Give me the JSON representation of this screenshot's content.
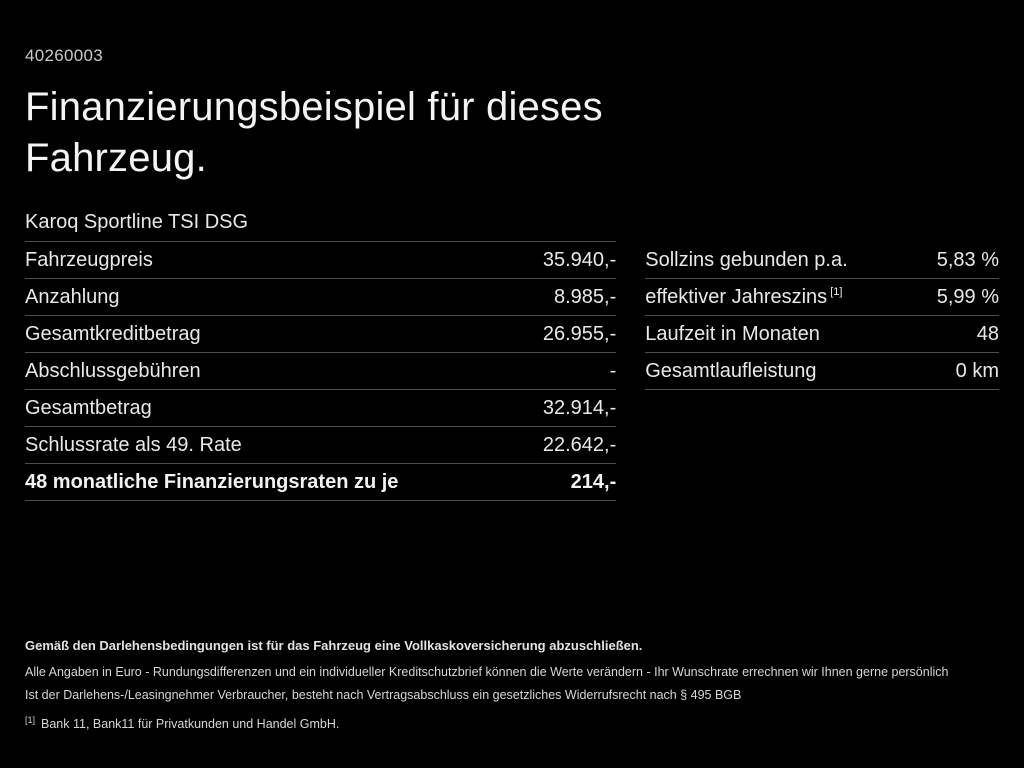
{
  "page": {
    "background": "#000000",
    "text_color": "#ededed",
    "divider_color": "#4f4f4f"
  },
  "header": {
    "reference_number": "40260003",
    "title_line1": "Finanzierungsbeispiel für dieses",
    "title_line2": "Fahrzeug."
  },
  "vehicle": {
    "model": "Karoq Sportline TSI DSG"
  },
  "left_table": {
    "rows": [
      {
        "label": "Fahrzeugpreis",
        "value": "35.940,-"
      },
      {
        "label": "Anzahlung",
        "value": "8.985,-"
      },
      {
        "label": "Gesamtkreditbetrag",
        "value": "26.955,-"
      },
      {
        "label": "Abschlussgebühren",
        "value": "-"
      },
      {
        "label": "Gesamtbetrag",
        "value": "32.914,-"
      },
      {
        "label": "Schlussrate als 49. Rate",
        "value": "22.642,-"
      },
      {
        "label": "48 monatliche Finanzierungsraten zu je",
        "value": "214,-"
      }
    ]
  },
  "right_table": {
    "rows": [
      {
        "label": "Sollzins gebunden p.a.",
        "value": "5,83 %"
      },
      {
        "label": "effektiver Jahreszins",
        "sup": "[1]",
        "value": "5,99 %"
      },
      {
        "label": "Laufzeit in Monaten",
        "value": "48"
      },
      {
        "label": "Gesamtlaufleistung",
        "value": "0 km"
      }
    ]
  },
  "footer": {
    "line1": "Gemäß den Darlehensbedingungen ist für das Fahrzeug eine Vollkaskoversicherung abzuschließen.",
    "line2": "Alle Angaben in Euro - Rundungsdifferenzen und ein individueller Kreditschutzbrief können die Werte verändern - Ihr Wunschrate errechnen wir Ihnen gerne persönlich",
    "line3": "Ist der Darlehens-/Leasingnehmer Verbraucher, besteht nach Vertragsabschluss ein gesetzliches Widerrufsrecht nach § 495 BGB",
    "footnote_marker": "[1]",
    "footnote_text": "Bank 11, Bank11 für Privatkunden und Handel GmbH."
  }
}
